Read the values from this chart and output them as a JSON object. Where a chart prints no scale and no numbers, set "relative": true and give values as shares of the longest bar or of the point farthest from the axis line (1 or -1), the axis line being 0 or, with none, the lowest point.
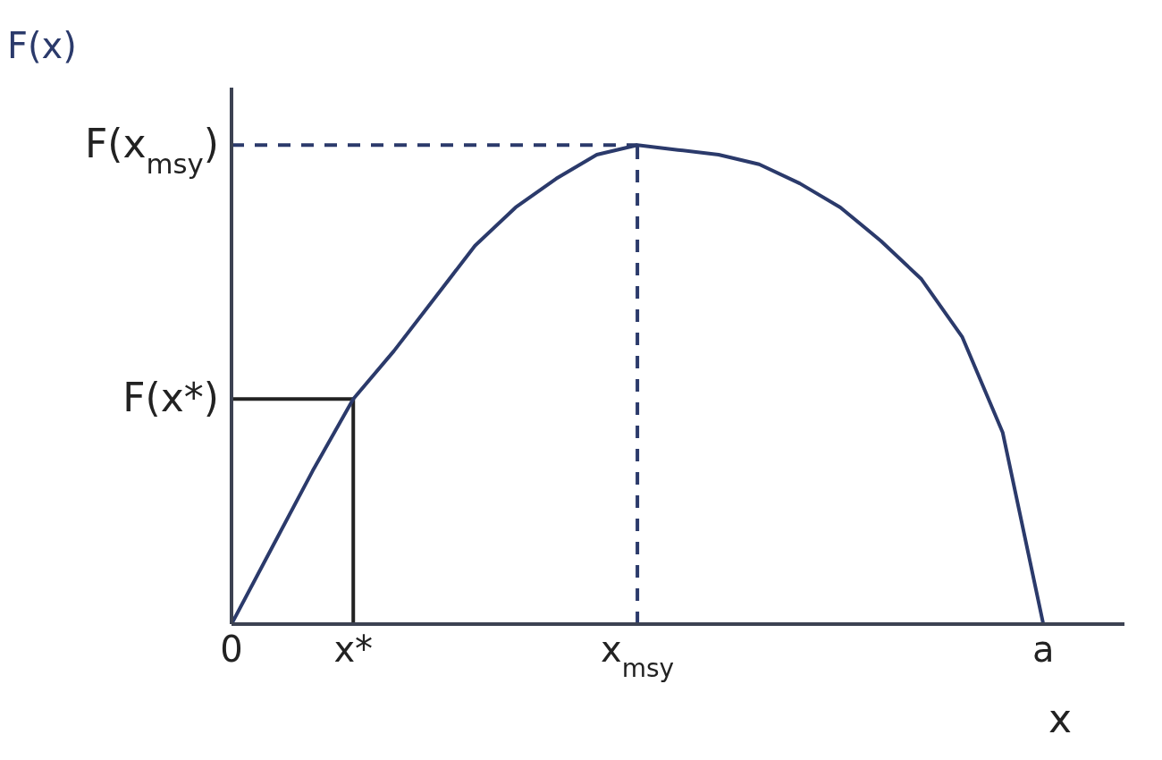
{
  "chart_data": {
    "type": "line",
    "relative": true,
    "xlabel": "x",
    "ylabel": "F(x)",
    "categories": [
      "0",
      null,
      null,
      "x*",
      null,
      null,
      null,
      null,
      null,
      null,
      "x$_{msy}$",
      null,
      null,
      null,
      null,
      null,
      null,
      null,
      null,
      null,
      "a",
      null,
      null
    ],
    "series": [
      {
        "color": "#2b3a6b",
        "values": [
          0,
          0.16,
          0.32,
          0.47,
          0.57,
          0.68,
          0.79,
          0.87,
          0.93,
          0.98,
          1,
          0.99,
          0.98,
          0.96,
          0.92,
          0.87,
          0.8,
          0.72,
          0.6,
          0.4,
          0,
          null,
          null
        ]
      }
    ],
    "ref_lines": [
      {
        "axis": "y",
        "value": 1,
        "label": "F(x$_{msy}$)",
        "color": "#2b3a6b",
        "line_style": "dashed"
      },
      {
        "axis": "x",
        "value": "x$_{msy}$",
        "label": null,
        "color": "#2b3a6b",
        "line_style": "dashed"
      },
      {
        "axis": "y",
        "value": 0.47,
        "label": "F(x*)",
        "color": "#222222",
        "line_style": "solid"
      },
      {
        "axis": "x",
        "value": "x*",
        "label": null,
        "color": "#222222",
        "line_style": "solid"
      }
    ],
    "grid": false,
    "marker": "none",
    "line_style": "solid"
  }
}
